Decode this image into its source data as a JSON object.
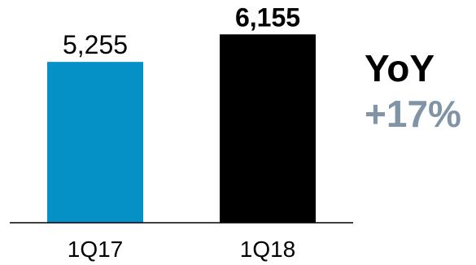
{
  "chart_data": {
    "type": "bar",
    "categories": [
      "1Q17",
      "1Q18"
    ],
    "values": [
      5255,
      6155
    ],
    "value_labels": [
      "5,255",
      "6,155"
    ],
    "value_label_bold": [
      false,
      true
    ],
    "bar_colors": [
      "#0591c6",
      "#000000"
    ],
    "title": "",
    "xlabel": "",
    "ylabel": "",
    "ylim": [
      0,
      6800
    ],
    "grid": false,
    "legend": "none"
  },
  "yoy": {
    "title": "YoY",
    "value": "+17%",
    "value_color": "#8094a6"
  }
}
